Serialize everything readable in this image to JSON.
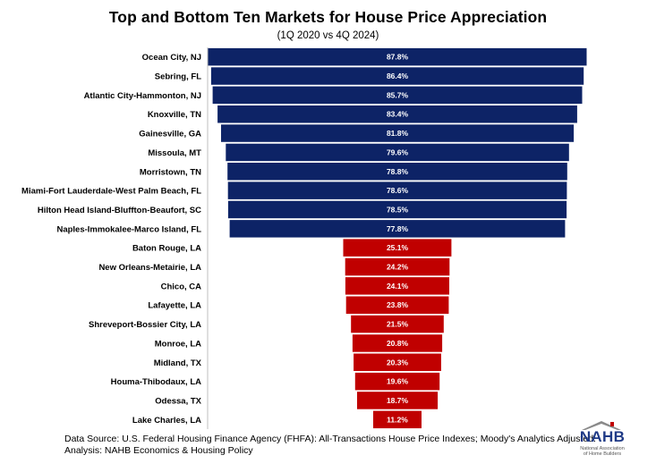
{
  "chart_data": {
    "type": "bar",
    "orientation": "horizontal",
    "title": "Top and Bottom Ten Markets for House Price Appreciation",
    "subtitle": "(1Q 2020 vs 4Q 2024)",
    "xlabel": "",
    "ylabel": "",
    "xlim": [
      0,
      87.8
    ],
    "grid": false,
    "legend": "none",
    "categories": [
      "Ocean City, NJ",
      "Sebring, FL",
      "Atlantic City-Hammonton, NJ",
      "Knoxville, TN",
      "Gainesville, GA",
      "Missoula, MT",
      "Morristown, TN",
      "Miami-Fort Lauderdale-West Palm Beach, FL",
      "Hilton Head Island-Bluffton-Beaufort, SC",
      "Naples-Immokalee-Marco Island, FL",
      "Baton Rouge, LA",
      "New Orleans-Metairie, LA",
      "Chico, CA",
      "Lafayette, LA",
      "Shreveport-Bossier City, LA",
      "Monroe, LA",
      "Midland, TX",
      "Houma-Thibodaux, LA",
      "Odessa, TX",
      "Lake Charles, LA"
    ],
    "values": [
      87.8,
      86.4,
      85.7,
      83.4,
      81.8,
      79.6,
      78.8,
      78.6,
      78.5,
      77.8,
      25.1,
      24.2,
      24.1,
      23.8,
      21.5,
      20.8,
      20.3,
      19.6,
      18.7,
      11.2
    ],
    "labels": [
      "87.8%",
      "86.4%",
      "85.7%",
      "83.4%",
      "81.8%",
      "79.6%",
      "78.8%",
      "78.6%",
      "78.5%",
      "77.8%",
      "25.1%",
      "24.2%",
      "24.1%",
      "23.8%",
      "21.5%",
      "20.8%",
      "20.3%",
      "19.6%",
      "18.7%",
      "11.2%"
    ],
    "groups": [
      "top",
      "top",
      "top",
      "top",
      "top",
      "top",
      "top",
      "top",
      "top",
      "top",
      "bottom",
      "bottom",
      "bottom",
      "bottom",
      "bottom",
      "bottom",
      "bottom",
      "bottom",
      "bottom",
      "bottom"
    ],
    "colors": {
      "top": "#0d2366",
      "bottom": "#c00000"
    }
  },
  "footer": {
    "source": "Data Source: U.S. Federal Housing Finance Agency (FHFA): All-Transactions House Price Indexes; Moody's Analytics Adjusted.",
    "analysis": "Analysis: NAHB Economics & Housing Policy"
  },
  "logo": {
    "wordmark": "NAHB",
    "tagline_1": "National Association",
    "tagline_2": "of Home Builders"
  }
}
